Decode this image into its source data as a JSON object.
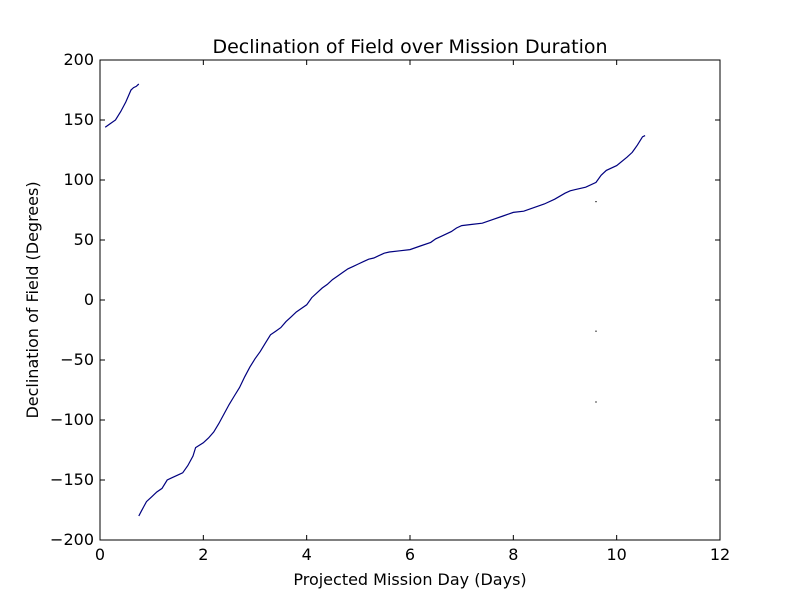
{
  "chart_data": {
    "type": "line",
    "title": "Declination of Field over Mission Duration",
    "xlabel": "Projected Mission Day (Days)",
    "ylabel": "Declination of Field (Degrees)",
    "xlim": [
      0,
      12
    ],
    "ylim": [
      -200,
      200
    ],
    "xticks": [
      0,
      2,
      4,
      6,
      8,
      10,
      12
    ],
    "yticks": [
      -200,
      -150,
      -100,
      -50,
      0,
      50,
      100,
      150,
      200
    ],
    "xtick_labels": [
      "0",
      "2",
      "4",
      "6",
      "8",
      "10",
      "12"
    ],
    "ytick_labels": [
      "−200",
      "−150",
      "−100",
      "−50",
      "0",
      "50",
      "100",
      "150",
      "200"
    ],
    "grid": false,
    "line_color": "#00007f",
    "point_color": "#000000",
    "series": [
      {
        "segments": [
          [
            [
              0.1,
              144
            ],
            [
              0.2,
              147
            ],
            [
              0.3,
              150
            ],
            [
              0.4,
              157
            ],
            [
              0.5,
              165
            ],
            [
              0.55,
              170
            ],
            [
              0.6,
              175
            ],
            [
              0.65,
              177
            ],
            [
              0.7,
              178
            ],
            [
              0.75,
              180
            ]
          ],
          [
            [
              0.75,
              -180
            ],
            [
              0.8,
              -176
            ],
            [
              0.85,
              -172
            ],
            [
              0.9,
              -168
            ],
            [
              1.0,
              -164
            ],
            [
              1.1,
              -160
            ],
            [
              1.2,
              -157
            ],
            [
              1.3,
              -150
            ],
            [
              1.4,
              -148
            ],
            [
              1.5,
              -146
            ],
            [
              1.6,
              -144
            ],
            [
              1.7,
              -138
            ],
            [
              1.8,
              -130
            ],
            [
              1.85,
              -123
            ],
            [
              2.0,
              -119
            ],
            [
              2.1,
              -115
            ],
            [
              2.2,
              -110
            ],
            [
              2.3,
              -103
            ],
            [
              2.4,
              -95
            ],
            [
              2.5,
              -87
            ],
            [
              2.6,
              -80
            ],
            [
              2.7,
              -73
            ],
            [
              2.8,
              -64
            ],
            [
              2.9,
              -56
            ],
            [
              3.0,
              -49
            ],
            [
              3.1,
              -43
            ],
            [
              3.2,
              -36
            ],
            [
              3.3,
              -29
            ],
            [
              3.4,
              -26
            ],
            [
              3.5,
              -23
            ],
            [
              3.6,
              -18
            ],
            [
              3.7,
              -14
            ],
            [
              3.8,
              -10
            ],
            [
              3.9,
              -7
            ],
            [
              4.0,
              -4
            ],
            [
              4.1,
              2
            ],
            [
              4.2,
              6
            ],
            [
              4.3,
              10
            ],
            [
              4.4,
              13
            ],
            [
              4.5,
              17
            ],
            [
              4.6,
              20
            ],
            [
              4.7,
              23
            ],
            [
              4.8,
              26
            ],
            [
              4.9,
              28
            ],
            [
              5.0,
              30
            ],
            [
              5.1,
              32
            ],
            [
              5.2,
              34
            ],
            [
              5.3,
              35
            ],
            [
              5.4,
              37
            ],
            [
              5.5,
              39
            ],
            [
              5.6,
              40
            ],
            [
              5.8,
              41
            ],
            [
              6.0,
              42
            ],
            [
              6.2,
              45
            ],
            [
              6.4,
              48
            ],
            [
              6.5,
              51
            ],
            [
              6.6,
              53
            ],
            [
              6.8,
              57
            ],
            [
              6.9,
              60
            ],
            [
              7.0,
              62
            ],
            [
              7.2,
              63
            ],
            [
              7.4,
              64
            ],
            [
              7.6,
              67
            ],
            [
              7.8,
              70
            ],
            [
              8.0,
              73
            ],
            [
              8.2,
              74
            ],
            [
              8.4,
              77
            ],
            [
              8.6,
              80
            ],
            [
              8.8,
              84
            ],
            [
              9.0,
              89
            ],
            [
              9.1,
              91
            ],
            [
              9.2,
              92
            ],
            [
              9.4,
              94
            ],
            [
              9.6,
              98
            ],
            [
              9.7,
              104
            ],
            [
              9.8,
              108
            ],
            [
              10.0,
              112
            ],
            [
              10.2,
              119
            ],
            [
              10.3,
              123
            ],
            [
              10.4,
              129
            ],
            [
              10.5,
              136
            ],
            [
              10.55,
              137
            ]
          ]
        ]
      }
    ],
    "outliers": [
      [
        9.6,
        82
      ],
      [
        9.6,
        -26
      ],
      [
        9.6,
        -85
      ]
    ]
  }
}
